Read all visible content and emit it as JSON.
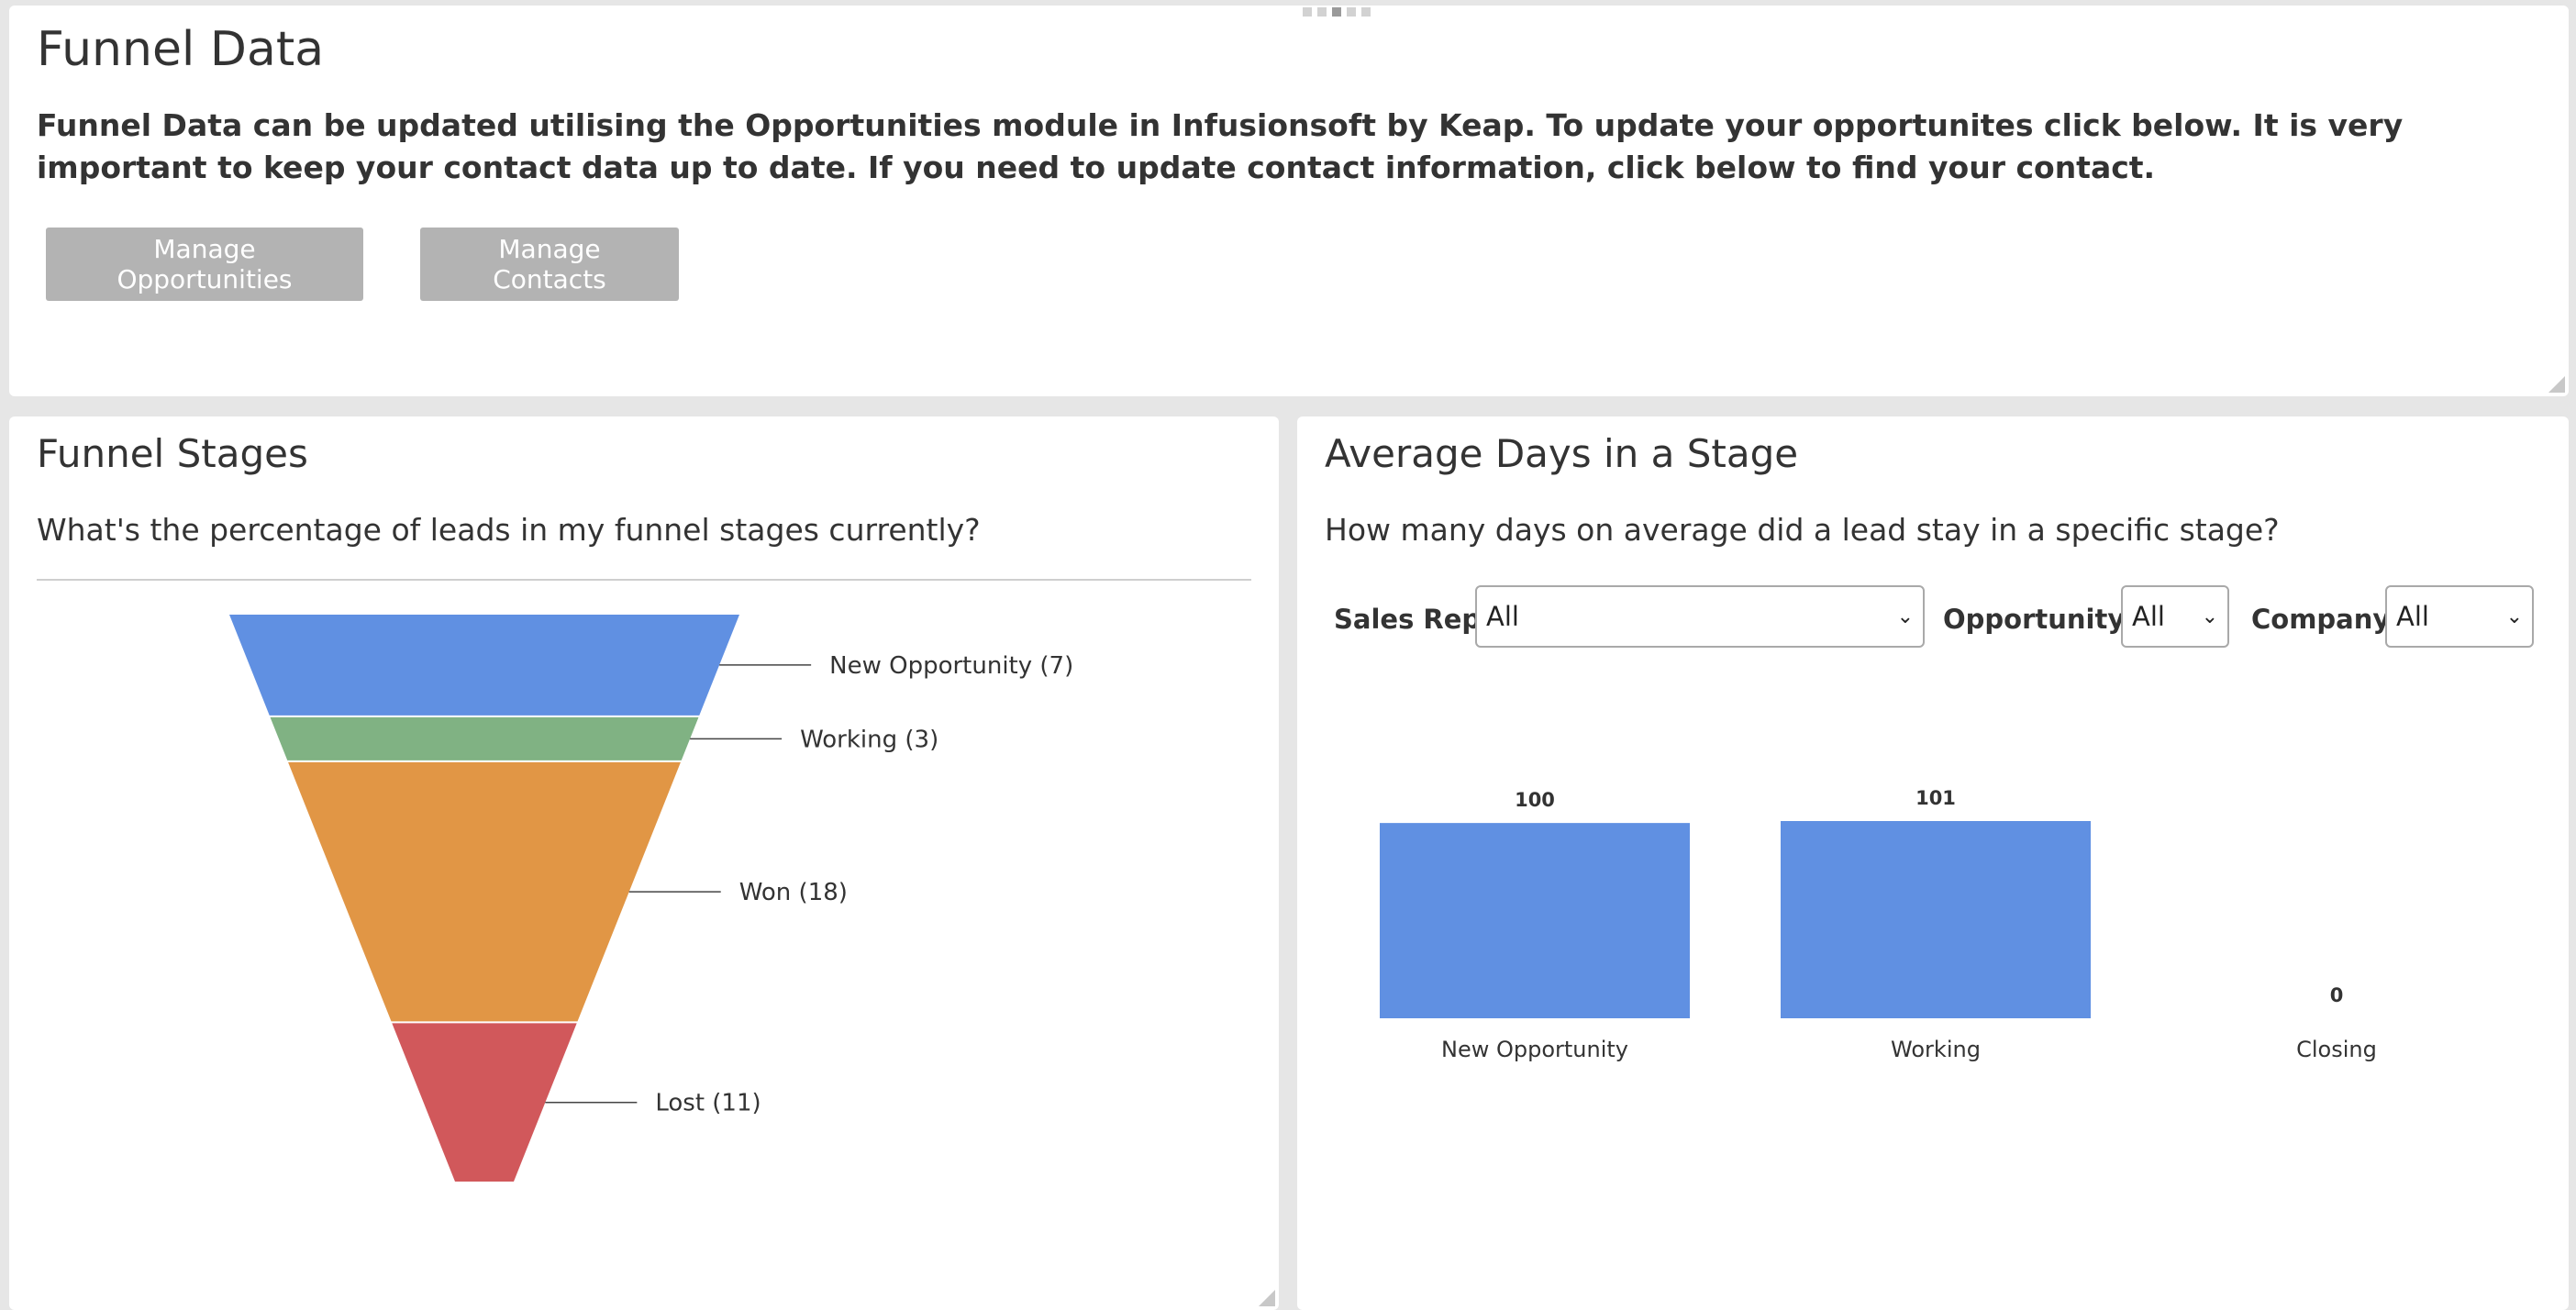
{
  "header": {
    "title": "Funnel Data",
    "description": "Funnel Data can be updated utilising the Opportunities module in Infusionsoft by Keap. To update your opportunites click below. It is very important to keep your contact data up to date. If you need to update contact information, click below to find your contact.",
    "buttons": {
      "manage_opportunities": "Manage Opportunities",
      "manage_contacts": "Manage Contacts"
    }
  },
  "funnel_panel": {
    "title": "Funnel Stages",
    "subtitle": "What's the percentage of leads in my funnel stages currently?"
  },
  "avg_panel": {
    "title": "Average Days in a Stage",
    "subtitle": "How many days on average did a lead stay in a specific stage?",
    "filters": {
      "sales_rep_label": "Sales Rep:",
      "sales_rep_value": "All",
      "opportunity_label": "Opportunity:",
      "opportunity_value": "All",
      "company_label": "Company:",
      "company_value": "All"
    }
  },
  "chart_data": [
    {
      "type": "funnel",
      "categories": [
        "New Opportunity",
        "Working",
        "Won",
        "Lost"
      ],
      "values": [
        7,
        3,
        18,
        11
      ],
      "labels": [
        "New Opportunity (7)",
        "Working (3)",
        "Won (18)",
        "Lost (11)"
      ],
      "colors": [
        "#6090e2",
        "#80b283",
        "#e19645",
        "#d1585b"
      ]
    },
    {
      "type": "bar",
      "categories": [
        "New Opportunity",
        "Working",
        "Closing"
      ],
      "values": [
        100,
        101,
        0
      ],
      "color": "#6090e2",
      "grid": false,
      "legend": "none"
    }
  ]
}
